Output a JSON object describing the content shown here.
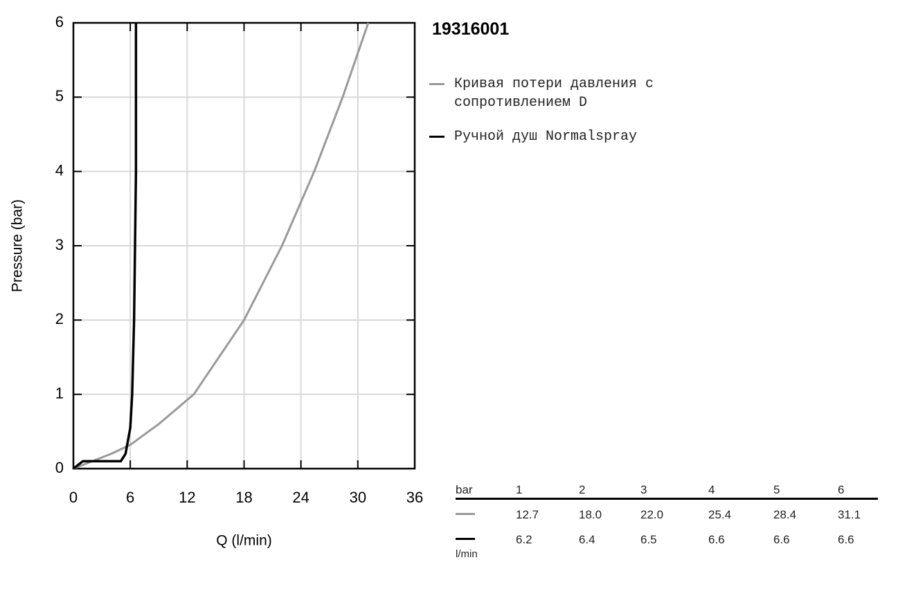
{
  "chart_data": {
    "type": "line",
    "title": "19316001",
    "x_label": "Q (l/min)",
    "y_label": "Pressure (bar)",
    "xlim": [
      0,
      36
    ],
    "ylim": [
      0,
      6
    ],
    "xticks": [
      0,
      6,
      12,
      18,
      24,
      30,
      36
    ],
    "yticks": [
      0,
      1,
      2,
      3,
      4,
      5,
      6
    ],
    "grid": true,
    "series": [
      {
        "name": "Кривая потери давления с сопротивлением D",
        "color": "#999999",
        "width": 3,
        "x": [
          0,
          2,
          4,
          6,
          9,
          12.7,
          18,
          22,
          25.4,
          28.4,
          31.1
        ],
        "values": [
          0,
          0.1,
          0.2,
          0.32,
          0.6,
          1,
          2,
          3,
          4,
          5,
          6
        ]
      },
      {
        "name": "Ручной душ Normalspray",
        "color": "#000000",
        "width": 3.5,
        "x": [
          0,
          0.5,
          1,
          5,
          5.5,
          6,
          6.2,
          6.4,
          6.5,
          6.6,
          6.6,
          6.6
        ],
        "values": [
          0,
          0.05,
          0.1,
          0.1,
          0.2,
          0.55,
          1,
          2,
          3,
          4,
          5,
          6
        ]
      }
    ]
  },
  "table": {
    "header": [
      "bar",
      "1",
      "2",
      "3",
      "4",
      "5",
      "6"
    ],
    "rows": [
      [
        "12.7",
        "18.0",
        "22.0",
        "25.4",
        "28.4",
        "31.1"
      ],
      [
        "6.2",
        "6.4",
        "6.5",
        "6.6",
        "6.6",
        "6.6"
      ]
    ],
    "unit": "l/min"
  }
}
